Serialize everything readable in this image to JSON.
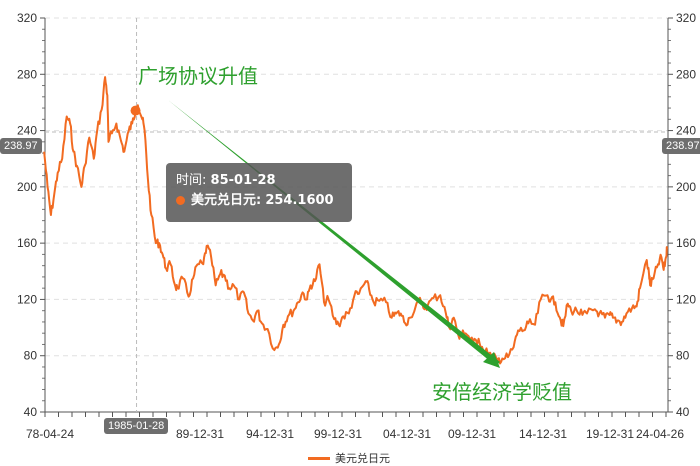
{
  "chart_data": {
    "type": "line",
    "xlabel": "",
    "ylabel": "",
    "ylim": [
      40,
      320
    ],
    "yticks": [
      40,
      80,
      120,
      160,
      200,
      240,
      280,
      320
    ],
    "xlim": [
      "1978-04-24",
      "2024-04-26"
    ],
    "xtick_labels": [
      "78-04-24",
      "84-12-31",
      "89-12-31",
      "94-12-31",
      "99-12-31",
      "04-12-31",
      "09-12-31",
      "14-12-31",
      "19-12-31",
      "24-04-26"
    ],
    "grid": true,
    "legend_position": "bottom",
    "series": [
      {
        "name": "美元兑日元",
        "color": "#f26b21",
        "points": [
          [
            "1978-04",
            225
          ],
          [
            "1978-07",
            200
          ],
          [
            "1978-10",
            180
          ],
          [
            "1979-01",
            195
          ],
          [
            "1979-04",
            210
          ],
          [
            "1979-08",
            220
          ],
          [
            "1979-12",
            250
          ],
          [
            "1980-03",
            245
          ],
          [
            "1980-06",
            225
          ],
          [
            "1980-09",
            215
          ],
          [
            "1981-01",
            200
          ],
          [
            "1981-04",
            215
          ],
          [
            "1981-08",
            235
          ],
          [
            "1981-12",
            220
          ],
          [
            "1982-03",
            240
          ],
          [
            "1982-07",
            255
          ],
          [
            "1982-10",
            278
          ],
          [
            "1982-12",
            265
          ],
          [
            "1983-01",
            232
          ],
          [
            "1983-04",
            238
          ],
          [
            "1983-08",
            245
          ],
          [
            "1983-12",
            233
          ],
          [
            "1984-03",
            225
          ],
          [
            "1984-07",
            240
          ],
          [
            "1984-10",
            245
          ],
          [
            "1985-01",
            254.16
          ],
          [
            "1985-03",
            258
          ],
          [
            "1985-07",
            248
          ],
          [
            "1985-09",
            240
          ],
          [
            "1985-12",
            205
          ],
          [
            "1986-03",
            180
          ],
          [
            "1986-07",
            160
          ],
          [
            "1986-10",
            160
          ],
          [
            "1987-01",
            152
          ],
          [
            "1987-04",
            142
          ],
          [
            "1987-08",
            145
          ],
          [
            "1987-12",
            130
          ],
          [
            "1988-02",
            128
          ],
          [
            "1988-07",
            135
          ],
          [
            "1988-12",
            122
          ],
          [
            "1989-04",
            135
          ],
          [
            "1989-08",
            145
          ],
          [
            "1990-01",
            145
          ],
          [
            "1990-04",
            158
          ],
          [
            "1990-08",
            150
          ],
          [
            "1990-12",
            130
          ],
          [
            "1991-04",
            138
          ],
          [
            "1991-08",
            137
          ],
          [
            "1991-12",
            128
          ],
          [
            "1992-04",
            130
          ],
          [
            "1992-09",
            120
          ],
          [
            "1993-01",
            125
          ],
          [
            "1993-05",
            110
          ],
          [
            "1993-09",
            105
          ],
          [
            "1994-01",
            112
          ],
          [
            "1994-05",
            103
          ],
          [
            "1994-10",
            99
          ],
          [
            "1995-04",
            84
          ],
          [
            "1995-08",
            88
          ],
          [
            "1995-12",
            102
          ],
          [
            "1996-04",
            108
          ],
          [
            "1996-09",
            112
          ],
          [
            "1997-01",
            118
          ],
          [
            "1997-05",
            125
          ],
          [
            "1997-09",
            120
          ],
          [
            "1997-12",
            130
          ],
          [
            "1998-04",
            133
          ],
          [
            "1998-08",
            145
          ],
          [
            "1998-12",
            118
          ],
          [
            "1999-04",
            120
          ],
          [
            "1999-09",
            106
          ],
          [
            "2000-01",
            102
          ],
          [
            "2000-05",
            108
          ],
          [
            "2000-10",
            110
          ],
          [
            "2001-03",
            123
          ],
          [
            "2001-07",
            124
          ],
          [
            "2002-01",
            133
          ],
          [
            "2002-04",
            127
          ],
          [
            "2002-08",
            118
          ],
          [
            "2003-01",
            119
          ],
          [
            "2003-07",
            118
          ],
          [
            "2003-12",
            107
          ],
          [
            "2004-04",
            110
          ],
          [
            "2004-08",
            110
          ],
          [
            "2004-12",
            103
          ],
          [
            "2005-04",
            107
          ],
          [
            "2005-12",
            120
          ],
          [
            "2006-04",
            114
          ],
          [
            "2006-08",
            116
          ],
          [
            "2007-01",
            121
          ],
          [
            "2007-07",
            123
          ],
          [
            "2007-12",
            110
          ],
          [
            "2008-03",
            100
          ],
          [
            "2008-07",
            107
          ],
          [
            "2008-12",
            92
          ],
          [
            "2009-03",
            98
          ],
          [
            "2009-08",
            94
          ],
          [
            "2009-12",
            89
          ],
          [
            "2010-05",
            92
          ],
          [
            "2010-09",
            84
          ],
          [
            "2011-01",
            82
          ],
          [
            "2011-04",
            80
          ],
          [
            "2011-10",
            77
          ],
          [
            "2012-02",
            78
          ],
          [
            "2012-07",
            79
          ],
          [
            "2012-12",
            86
          ],
          [
            "2013-04",
            98
          ],
          [
            "2013-09",
            98
          ],
          [
            "2014-01",
            103
          ],
          [
            "2014-07",
            102
          ],
          [
            "2014-12",
            120
          ],
          [
            "2015-06",
            123
          ],
          [
            "2015-09",
            120
          ],
          [
            "2016-01",
            118
          ],
          [
            "2016-05",
            107
          ],
          [
            "2016-08",
            101
          ],
          [
            "2016-12",
            117
          ],
          [
            "2017-03",
            112
          ],
          [
            "2017-08",
            112
          ],
          [
            "2018-01",
            109
          ],
          [
            "2018-05",
            110
          ],
          [
            "2018-12",
            113
          ],
          [
            "2019-04",
            110
          ],
          [
            "2019-09",
            107
          ],
          [
            "2020-01",
            109
          ],
          [
            "2020-04",
            107
          ],
          [
            "2020-08",
            105
          ],
          [
            "2020-12",
            104
          ],
          [
            "2021-04",
            110
          ],
          [
            "2021-09",
            114
          ],
          [
            "2022-01",
            115
          ],
          [
            "2022-04",
            128
          ],
          [
            "2022-10",
            148
          ],
          [
            "2022-12",
            138
          ],
          [
            "2023-01",
            130
          ],
          [
            "2023-04",
            135
          ],
          [
            "2023-08",
            145
          ],
          [
            "2023-11",
            150
          ],
          [
            "2024-01",
            141
          ],
          [
            "2024-03",
            150
          ],
          [
            "2024-04",
            156
          ]
        ]
      }
    ],
    "annotations": [
      "广场协议升值",
      "安倍经济学贬值"
    ],
    "tooltip": {
      "time_label": "时间:",
      "time_value": "85-01-28",
      "series_label": "美元兑日元:",
      "value": "254.1600"
    },
    "axis_pointer": {
      "x_label": "1985-01-28",
      "y_label": "238.97"
    }
  }
}
